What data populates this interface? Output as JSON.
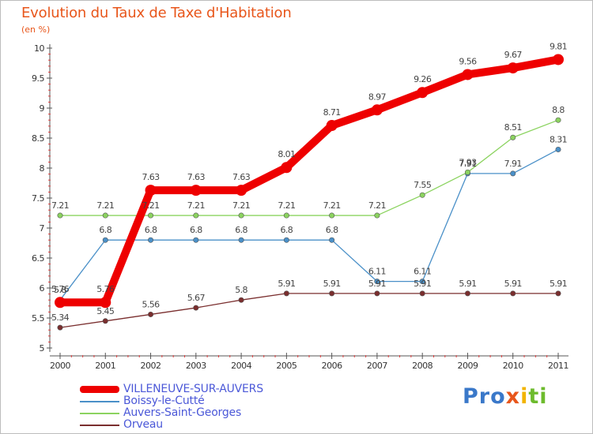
{
  "header": {
    "title": "Evolution du Taux de Taxe d'Habitation",
    "subtitle": "(en %)"
  },
  "logo": {
    "text": "Proxiti",
    "parts": [
      "Pro",
      "x",
      "i",
      "ti"
    ]
  },
  "chart_data": {
    "type": "line",
    "title": "Evolution du Taux de Taxe d'Habitation",
    "ylabel": "(en %)",
    "xlabel": "",
    "x": [
      "2000",
      "2001",
      "2002",
      "2003",
      "2004",
      "2005",
      "2006",
      "2007",
      "2008",
      "2009",
      "2010",
      "2011"
    ],
    "ylim": [
      5,
      10
    ],
    "yticks": [
      "5",
      "5.5",
      "6",
      "6.5",
      "7",
      "7.5",
      "8",
      "8.5",
      "9",
      "9.5",
      "10"
    ],
    "grid": false,
    "legend_position": "bottom",
    "series": [
      {
        "name": "Boissy-le-Cutté",
        "color": "#4a90c8",
        "values": [
          5.8,
          6.8,
          6.8,
          6.8,
          6.8,
          6.8,
          6.8,
          6.11,
          6.11,
          7.91,
          7.91,
          8.31
        ],
        "labels": [
          "5.8",
          "6.8",
          "6.8",
          "6.8",
          "6.8",
          "6.8",
          "6.8",
          "6.11",
          "6.11",
          "7.91",
          "7.91",
          "8.31"
        ]
      },
      {
        "name": "Auvers-Saint-Georges",
        "color": "#8bd35f",
        "values": [
          7.21,
          7.21,
          7.21,
          7.21,
          7.21,
          7.21,
          7.21,
          7.21,
          7.55,
          7.93,
          8.51,
          8.8
        ],
        "labels": [
          "7.21",
          "7.21",
          "7.21",
          "7.21",
          "7.21",
          "7.21",
          "7.21",
          "7.21",
          "7.55",
          "7.93",
          "8.51",
          "8.8"
        ]
      },
      {
        "name": "Orveau",
        "color": "#7a2e2e",
        "values": [
          5.34,
          5.45,
          5.56,
          5.67,
          5.8,
          5.91,
          5.91,
          5.91,
          5.91,
          5.91,
          5.91,
          5.91
        ],
        "labels": [
          "5.34",
          "5.45",
          "5.56",
          "5.67",
          "5.8",
          "5.91",
          "5.91",
          "5.91",
          "5.91",
          "5.91",
          "5.91",
          "5.91"
        ]
      },
      {
        "name": "VILLENEUVE-SUR-AUVERS",
        "color": "#ee0000",
        "values": [
          5.76,
          5.76,
          7.63,
          7.63,
          7.63,
          8.01,
          8.71,
          8.97,
          9.26,
          9.56,
          9.67,
          9.81
        ],
        "labels": [
          "5.76",
          "5.76",
          "7.63",
          "7.63",
          "7.63",
          "8.01",
          "8.71",
          "8.97",
          "9.26",
          "9.56",
          "9.67",
          "9.81"
        ]
      }
    ],
    "legend": [
      {
        "name": "VILLENEUVE-SUR-AUVERS",
        "color": "#ee0000",
        "weight": "thick"
      },
      {
        "name": "Boissy-le-Cutté",
        "color": "#4a90c8",
        "weight": "thin"
      },
      {
        "name": "Auvers-Saint-Georges",
        "color": "#8bd35f",
        "weight": "thin"
      },
      {
        "name": "Orveau",
        "color": "#7a2e2e",
        "weight": "thin"
      }
    ]
  }
}
